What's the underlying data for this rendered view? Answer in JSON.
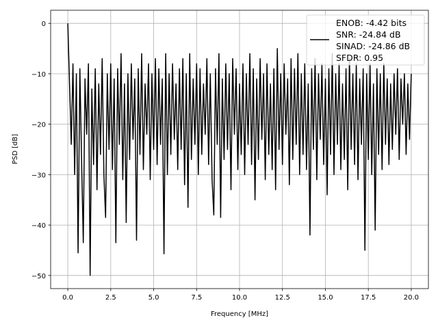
{
  "chart_data": {
    "type": "line",
    "title": "",
    "xlabel": "Frequency [MHz]",
    "ylabel": "PSD [dB]",
    "xlim": [
      -1.0,
      21.0
    ],
    "ylim": [
      -52.6,
      2.6
    ],
    "grid": true,
    "x_ticks": [
      0,
      2.5,
      5,
      7.5,
      10,
      12.5,
      15,
      17.5,
      20
    ],
    "x_tick_labels": [
      "0.0",
      "2.5",
      "5.0",
      "7.5",
      "10.0",
      "12.5",
      "15.0",
      "17.5",
      "20.0"
    ],
    "y_ticks": [
      0,
      -10,
      -20,
      -30,
      -40,
      -50
    ],
    "y_tick_labels": [
      "0",
      "−10",
      "−20",
      "−30",
      "−40",
      "−50"
    ],
    "legend_placement": "upper-right",
    "series": [
      {
        "name": "ENOB: -4.42 bits",
        "legend_lines": [
          "ENOB: -4.42 bits",
          "SNR: -24.84 dB",
          "SINAD: -24.86 dB",
          "SFDR: 0.95"
        ],
        "color": "#000000",
        "x_start": 0.0,
        "x_end": 20.0,
        "y": [
          0,
          -12,
          -24,
          -8,
          -30,
          -10,
          -45.5,
          -9,
          -27,
          -43.5,
          -11,
          -22,
          -8,
          -50,
          -13,
          -28,
          -9,
          -33,
          -12,
          -26,
          -7,
          -30,
          -38.5,
          -10,
          -25,
          -8,
          -29,
          -11,
          -43.5,
          -9,
          -24,
          -6,
          -31,
          -12,
          -39.5,
          -10,
          -27,
          -8,
          -23,
          -11,
          -43,
          -9,
          -26,
          -6,
          -29,
          -12,
          -22,
          -8,
          -31,
          -10,
          -25,
          -7,
          -28,
          -9,
          -24,
          -11,
          -45.7,
          -6,
          -30,
          -10,
          -26,
          -8,
          -23,
          -12,
          -29,
          -9,
          -25,
          -7,
          -32,
          -10,
          -36.5,
          -6,
          -27,
          -11,
          -24,
          -8,
          -30,
          -9,
          -26,
          -12,
          -22,
          -7,
          -28,
          -10,
          -31,
          -38,
          -9,
          -24,
          -6,
          -38.5,
          -11,
          -27,
          -8,
          -25,
          -10,
          -33,
          -7,
          -22,
          -9,
          -29,
          -12,
          -26,
          -8,
          -30,
          -10,
          -24,
          -6,
          -28,
          -9,
          -35,
          -11,
          -27,
          -7,
          -23,
          -10,
          -31,
          -8,
          -26,
          -12,
          -29,
          -9,
          -33,
          -5,
          -25,
          -10,
          -28,
          -8,
          -22,
          -11,
          -32,
          -7,
          -27,
          -9,
          -24,
          -6,
          -30,
          -10,
          -26,
          -8,
          -29,
          -12,
          -42,
          -9,
          -25,
          -7,
          -31,
          -10,
          -23,
          -8,
          -28,
          -11,
          -34,
          -9,
          -26,
          -6,
          -30,
          -10,
          -24,
          -8,
          -29,
          -12,
          -27,
          -9,
          -33,
          -7,
          -25,
          -10,
          -28,
          -8,
          -31,
          -11,
          -24,
          -9,
          -45,
          -10,
          -27,
          -8,
          -30,
          -12,
          -41,
          -9,
          -26,
          -10,
          -29,
          -8,
          -24,
          -11,
          -28,
          -12,
          -25,
          -10,
          -22,
          -9,
          -27,
          -11,
          -20,
          -10,
          -26,
          -12,
          -23,
          -10
        ]
      }
    ]
  }
}
